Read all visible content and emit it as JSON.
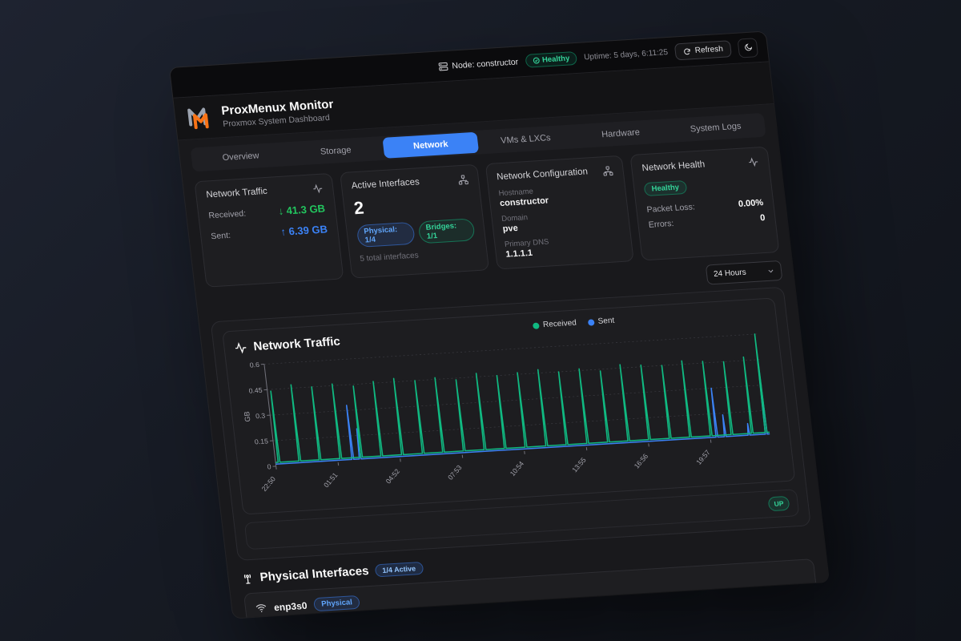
{
  "topbar": {
    "node_label": "Node: constructor",
    "health_label": "Healthy",
    "uptime": "Uptime: 5 days, 6:11:25",
    "refresh_label": "Refresh"
  },
  "header": {
    "title": "ProxMenux Monitor",
    "subtitle": "Proxmox System Dashboard"
  },
  "tabs": [
    {
      "label": "Overview"
    },
    {
      "label": "Storage"
    },
    {
      "label": "Network"
    },
    {
      "label": "VMs & LXCs"
    },
    {
      "label": "Hardware"
    },
    {
      "label": "System Logs"
    }
  ],
  "cards": {
    "traffic": {
      "title": "Network Traffic",
      "rows": [
        {
          "label": "Received:",
          "value": "↓ 41.3 GB"
        },
        {
          "label": "Sent:",
          "value": "↑ 6.39 GB"
        }
      ]
    },
    "interfaces": {
      "title": "Active Interfaces",
      "count": "2",
      "badges": [
        {
          "label": "Physical: 1/4"
        },
        {
          "label": "Bridges: 1/1"
        }
      ],
      "total": "5 total interfaces"
    },
    "config": {
      "title": "Network Configuration",
      "fields": [
        {
          "label": "Hostname",
          "value": "constructor"
        },
        {
          "label": "Domain",
          "value": "pve"
        },
        {
          "label": "Primary DNS",
          "value": "1.1.1.1"
        }
      ]
    },
    "health": {
      "title": "Network Health",
      "status": "Healthy",
      "rows": [
        {
          "label": "Packet Loss:",
          "value": "0.00%"
        },
        {
          "label": "Errors:",
          "value": "0"
        }
      ]
    }
  },
  "time_range": "24 Hours",
  "chart_section": {
    "title": "Network Traffic"
  },
  "chart_data": {
    "type": "line",
    "title": "Network Traffic",
    "ylabel": "GB",
    "ylim": [
      0,
      0.6
    ],
    "yticks": [
      0,
      0.15,
      0.3,
      0.45,
      0.6
    ],
    "xticks": [
      {
        "f": 0.0,
        "label": "22:50"
      },
      {
        "f": 0.1257,
        "label": "01:51"
      },
      {
        "f": 0.2514,
        "label": "04:52"
      },
      {
        "f": 0.3771,
        "label": "07:53"
      },
      {
        "f": 0.5028,
        "label": "10:54"
      },
      {
        "f": 0.6285,
        "label": "13:55"
      },
      {
        "f": 0.7542,
        "label": "16:56"
      },
      {
        "f": 0.8799,
        "label": "19:57"
      }
    ],
    "grid": true,
    "legend_position": "top",
    "series": [
      {
        "name": "Received",
        "color": "#10b981",
        "baseline": 0.022,
        "spikes": [
          [
            0.007,
            0.44
          ],
          [
            0.049,
            0.47
          ],
          [
            0.09,
            0.45
          ],
          [
            0.132,
            0.46
          ],
          [
            0.174,
            0.44
          ],
          [
            0.215,
            0.46
          ],
          [
            0.257,
            0.47
          ],
          [
            0.299,
            0.45
          ],
          [
            0.34,
            0.46
          ],
          [
            0.382,
            0.44
          ],
          [
            0.424,
            0.47
          ],
          [
            0.465,
            0.45
          ],
          [
            0.507,
            0.46
          ],
          [
            0.549,
            0.47
          ],
          [
            0.59,
            0.45
          ],
          [
            0.632,
            0.46
          ],
          [
            0.674,
            0.44
          ],
          [
            0.715,
            0.47
          ],
          [
            0.757,
            0.46
          ],
          [
            0.799,
            0.45
          ],
          [
            0.84,
            0.47
          ],
          [
            0.882,
            0.46
          ],
          [
            0.924,
            0.45
          ],
          [
            0.965,
            0.47
          ],
          [
            0.993,
            0.6
          ]
        ]
      },
      {
        "name": "Sent",
        "color": "#3b82f6",
        "baseline": 0.012,
        "spikes": [
          [
            0.156,
            0.33
          ],
          [
            0.171,
            0.19
          ],
          [
            0.893,
            0.3
          ],
          [
            0.91,
            0.14
          ],
          [
            0.958,
            0.08
          ],
          [
            0.993,
            0.45
          ]
        ]
      }
    ]
  },
  "bridge_status": "UP",
  "physical": {
    "title": "Physical Interfaces",
    "badge": "1/4 Active",
    "rows": [
      {
        "name": "enp3s0",
        "badge": "Physical"
      }
    ]
  },
  "colors": {
    "accent_blue": "#3b82f6",
    "value_green": "#22c55e",
    "chart_green": "#10b981",
    "chart_blue": "#3b82f6",
    "badge_green": "#34d399",
    "logo_orange": "#f97316",
    "logo_gray": "#9ca3af"
  }
}
